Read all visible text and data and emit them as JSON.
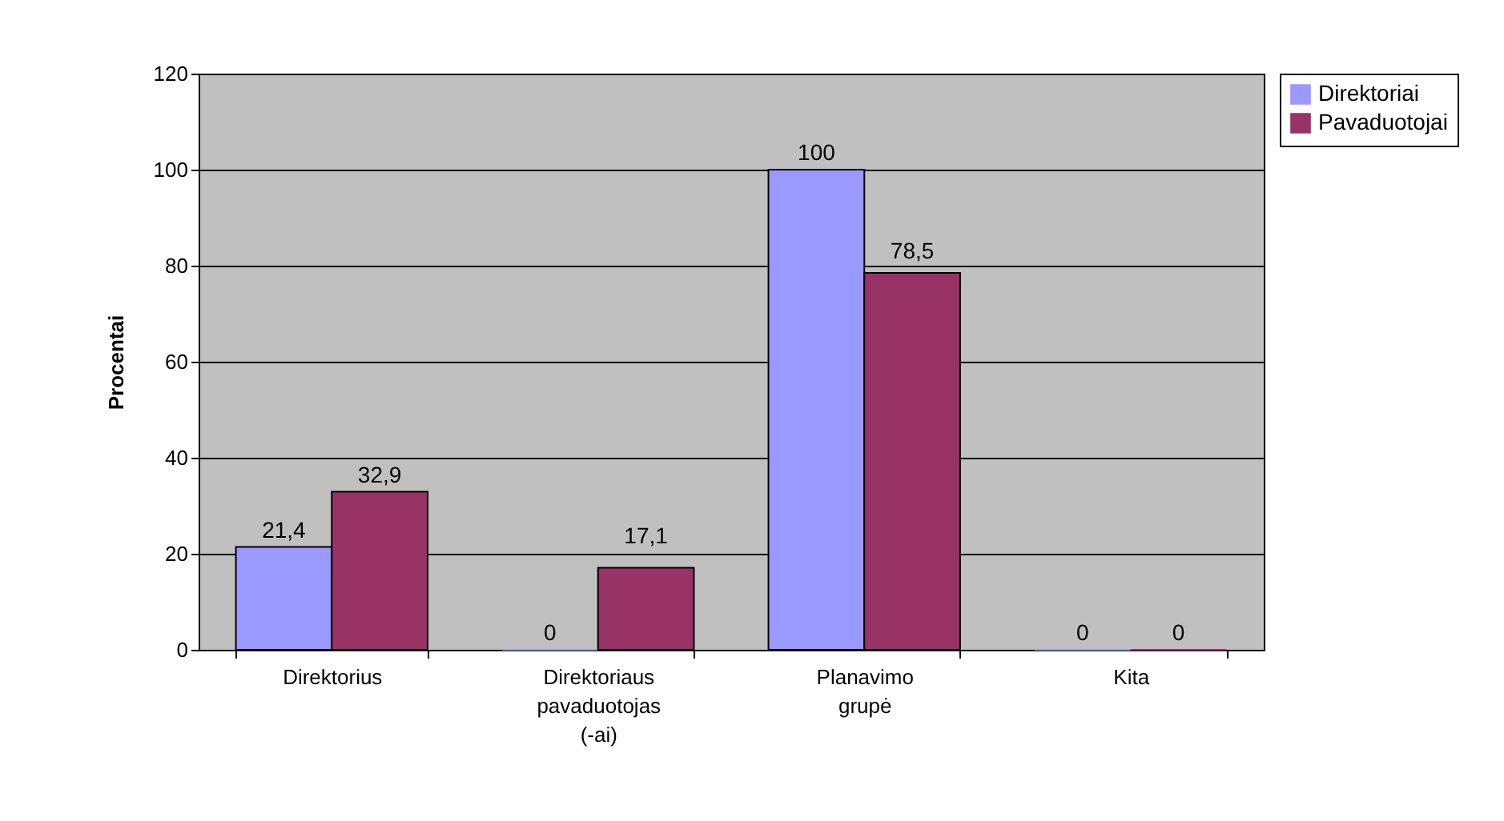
{
  "chart_data": {
    "type": "bar",
    "ylabel": "Procentai",
    "categories": [
      "Direktorius",
      "Direktoriaus pavaduotojas (-ai)",
      "Planavimo grupė",
      "Kita"
    ],
    "series": [
      {
        "name": "Direktoriai",
        "color": "#9999ff",
        "values": [
          21.4,
          0,
          100,
          0
        ],
        "value_labels": [
          "21,4",
          "0",
          "100",
          "0"
        ]
      },
      {
        "name": "Pavaduotojai",
        "color": "#993366",
        "values": [
          32.9,
          17.1,
          78.5,
          0
        ],
        "value_labels": [
          "32,9",
          "17,1",
          "78,5",
          "0"
        ]
      }
    ],
    "ylim": [
      0,
      120
    ],
    "yticks": [
      0,
      20,
      40,
      60,
      80,
      100,
      120
    ],
    "grid": "y",
    "legend": "right"
  }
}
